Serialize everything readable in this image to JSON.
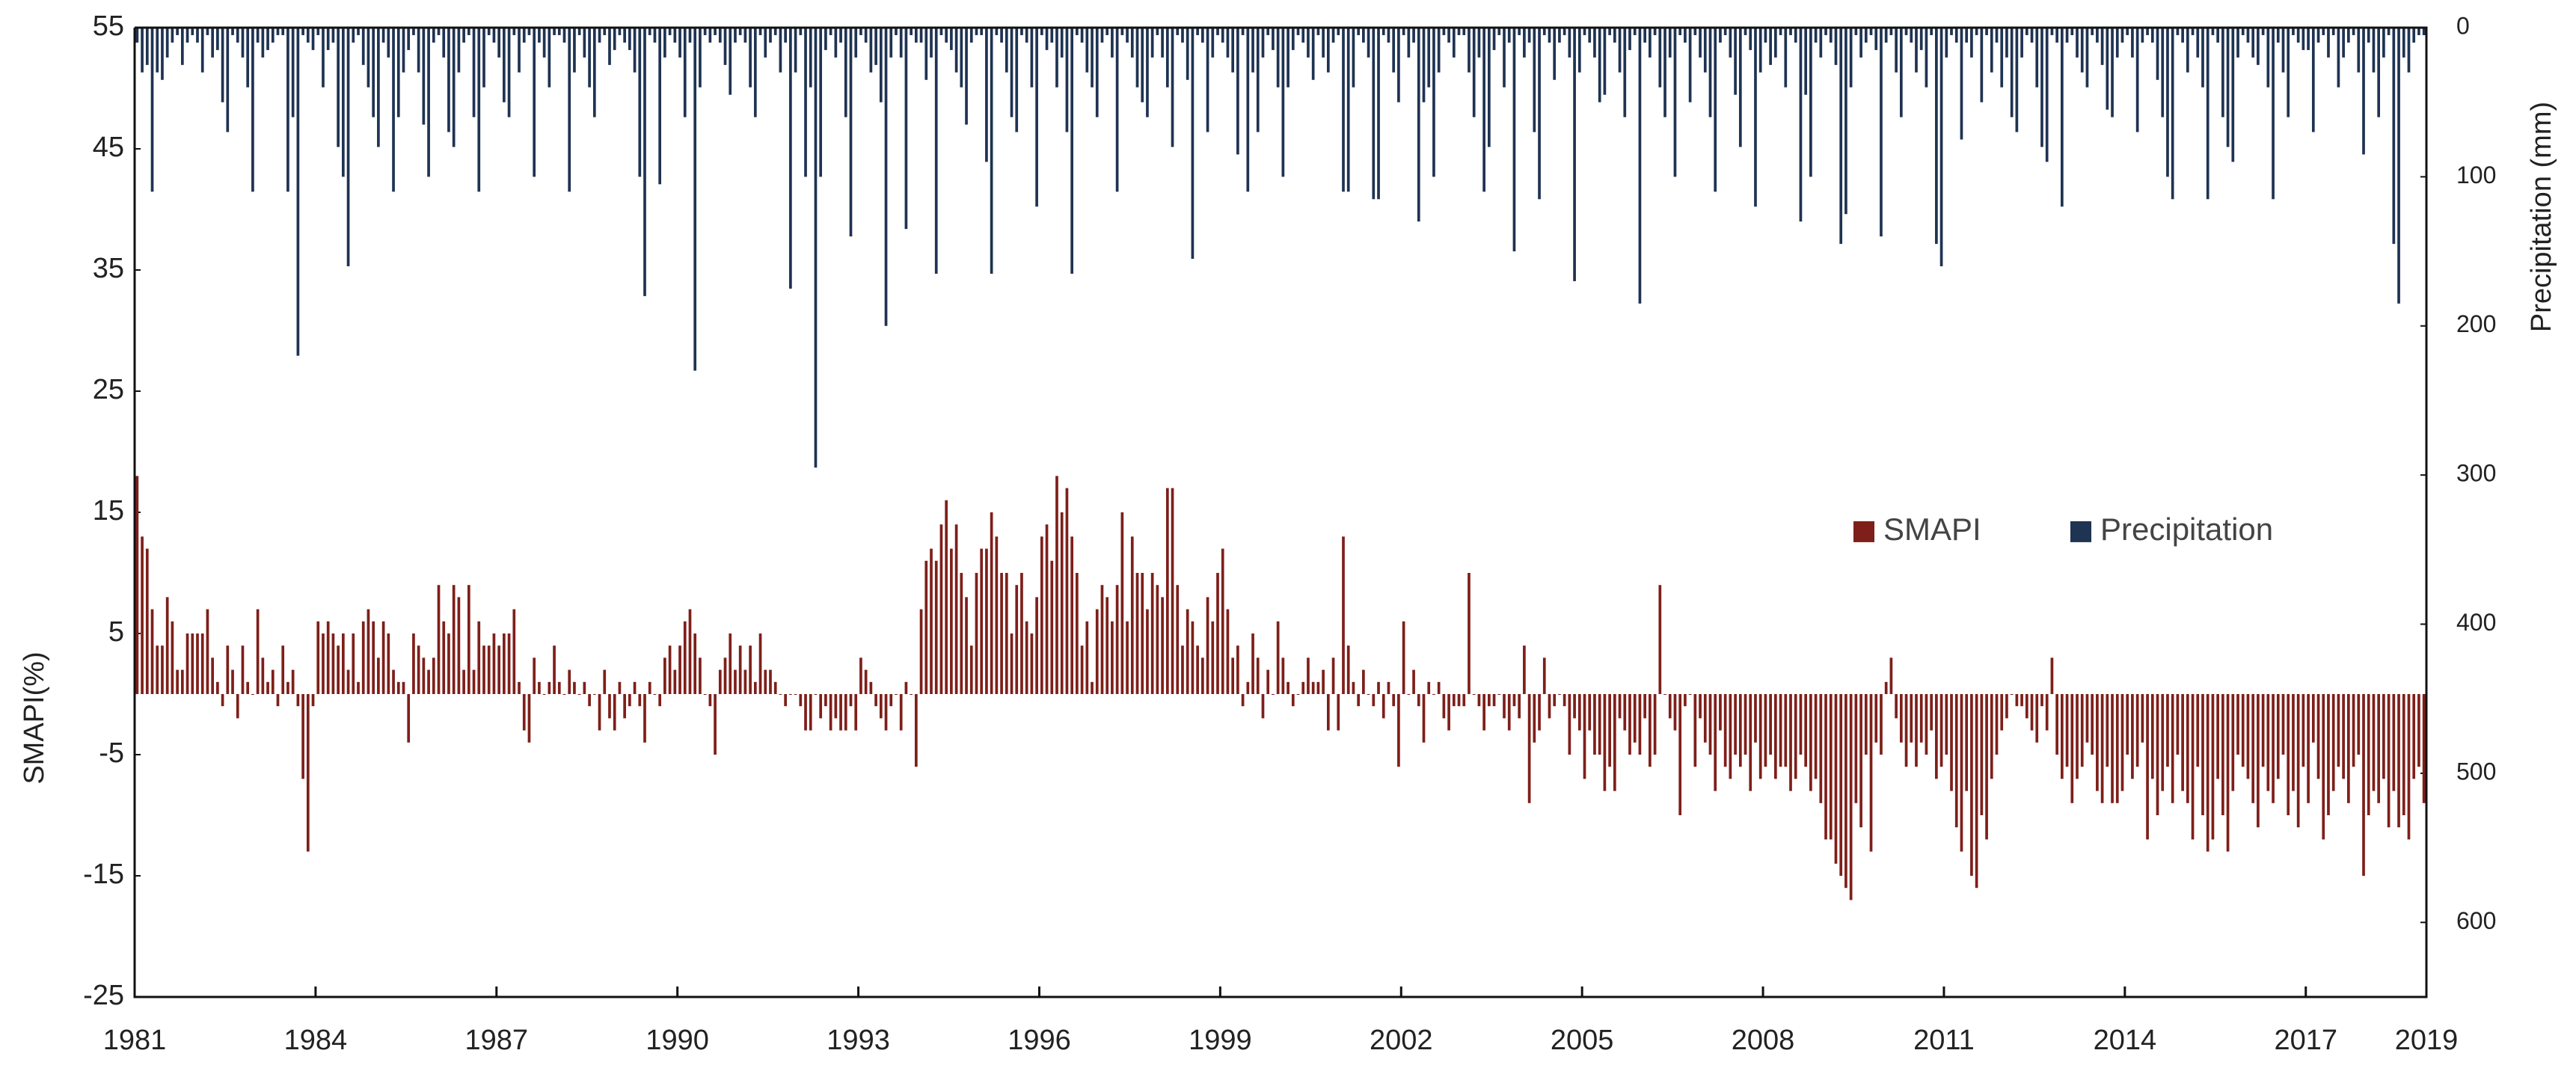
{
  "chart_data": {
    "type": "bar",
    "y_label": "SMAPI(%)",
    "y2_label": "Precipitation (mm)",
    "xlim": [
      1981,
      2019
    ],
    "xticks": [
      1981,
      1984,
      1987,
      1990,
      1993,
      1996,
      1999,
      2002,
      2005,
      2008,
      2011,
      2014,
      2017,
      2019
    ],
    "ylim": [
      -25,
      55
    ],
    "yticks": [
      -25,
      -15,
      -5,
      5,
      15,
      25,
      35,
      45,
      55
    ],
    "y2lim": [
      0,
      650
    ],
    "y2ticks": [
      0,
      100,
      200,
      300,
      400,
      500,
      600
    ],
    "y2_reversed": true,
    "legend": "center-right",
    "series": [
      {
        "name": "SMAPI",
        "color": "#7e1f1a",
        "axis": "y",
        "values": [
          18,
          13,
          12,
          7,
          4,
          4,
          8,
          6,
          2,
          2,
          5,
          5,
          5,
          5,
          7,
          3,
          1,
          -1,
          4,
          2,
          -2,
          4,
          1,
          0,
          7,
          3,
          1,
          2,
          -1,
          4,
          1,
          2,
          -1,
          -7,
          -13,
          -1,
          6,
          5,
          6,
          5,
          4,
          5,
          2,
          5,
          1,
          6,
          7,
          6,
          3,
          6,
          5,
          2,
          1,
          1,
          -4,
          5,
          4,
          3,
          2,
          3,
          9,
          6,
          5,
          9,
          8,
          2,
          9,
          2,
          6,
          4,
          4,
          5,
          4,
          5,
          5,
          7,
          1,
          -3,
          -4,
          3,
          1,
          0,
          1,
          4,
          1,
          0,
          2,
          1,
          0,
          1,
          -1,
          0,
          -3,
          2,
          -2,
          -3,
          1,
          -2,
          -1,
          1,
          -1,
          -4,
          1,
          0,
          -1,
          3,
          4,
          2,
          4,
          6,
          7,
          5,
          3,
          0,
          -1,
          -5,
          2,
          3,
          5,
          2,
          4,
          2,
          4,
          1,
          5,
          2,
          2,
          1,
          0,
          -1,
          0,
          0,
          -1,
          -3,
          -3,
          0,
          -2,
          -1,
          -3,
          -2,
          -3,
          -3,
          -1,
          -3,
          3,
          2,
          1,
          -1,
          -2,
          -3,
          -1,
          0,
          -3,
          1,
          0,
          -6,
          7,
          11,
          12,
          11,
          14,
          16,
          12,
          14,
          10,
          8,
          4,
          10,
          12,
          12,
          15,
          13,
          10,
          10,
          5,
          9,
          10,
          6,
          5,
          8,
          13,
          14,
          11,
          18,
          15,
          17,
          13,
          10,
          4,
          6,
          1,
          7,
          9,
          8,
          6,
          9,
          15,
          6,
          13,
          10,
          10,
          7,
          10,
          9,
          8,
          17,
          17,
          9,
          4,
          7,
          6,
          4,
          3,
          8,
          6,
          10,
          12,
          7,
          3,
          4,
          -1,
          1,
          5,
          3,
          -2,
          2,
          0,
          6,
          3,
          1,
          -1,
          0,
          1,
          3,
          1,
          1,
          2,
          -3,
          3,
          -3,
          13,
          4,
          1,
          -1,
          2,
          0,
          -1,
          1,
          -2,
          1,
          -1,
          -6,
          6,
          0,
          2,
          -1,
          -4,
          1,
          0,
          1,
          -2,
          -3,
          -1,
          -1,
          -1,
          10,
          0,
          -1,
          -3,
          -1,
          -1,
          0,
          -2,
          -3,
          -1,
          -2,
          4,
          -9,
          -4,
          -3,
          3,
          -2,
          -1,
          0,
          -1,
          -5,
          -2,
          -3,
          -7,
          -3,
          -5,
          -5,
          -8,
          -6,
          -8,
          -2,
          -3,
          -5,
          -4,
          -5,
          -2,
          -6,
          -5,
          9,
          0,
          -2,
          -3,
          -10,
          -1,
          0,
          -6,
          -2,
          -4,
          -5,
          -8,
          -3,
          -6,
          -7,
          -5,
          -6,
          -5,
          -8,
          -4,
          -7,
          -6,
          -5,
          -7,
          -6,
          -6,
          -8,
          -7,
          -5,
          -6,
          -8,
          -7,
          -9,
          -12,
          -12,
          -14,
          -15,
          -16,
          -17,
          -9,
          -11,
          -5,
          -13,
          -4,
          -5,
          1,
          3,
          -2,
          -4,
          -6,
          -4,
          -6,
          -4,
          -5,
          -3,
          -7,
          -6,
          -5,
          -8,
          -11,
          -13,
          -8,
          -15,
          -16,
          -10,
          -12,
          -7,
          -5,
          -3,
          -2,
          0,
          -1,
          -1,
          -2,
          -3,
          -4,
          -1,
          -3,
          3,
          -5,
          -7,
          -6,
          -9,
          -7,
          -6,
          -4,
          -5,
          -8,
          -9,
          -6,
          -9,
          -9,
          -8,
          -5,
          -7,
          -6,
          -4,
          -12,
          -7,
          -10,
          -8,
          -6,
          -9,
          -5,
          -8,
          -9,
          -12,
          -6,
          -10,
          -13,
          -12,
          -7,
          -10,
          -13,
          -8,
          -5,
          -6,
          -7,
          -9,
          -11,
          -6,
          -8,
          -9,
          -7,
          -5,
          -10,
          -8,
          -11,
          -6,
          -9,
          -4,
          -7,
          -12,
          -10,
          -8,
          -6,
          -7,
          -9,
          -6,
          -5,
          -15,
          -10,
          -8,
          -9,
          -7,
          -11,
          -8,
          -11,
          -10,
          -12,
          -7,
          -6,
          -9
        ]
      },
      {
        "name": "Precipitation",
        "color": "#1f3352",
        "axis": "y2",
        "values": [
          10,
          30,
          25,
          110,
          30,
          35,
          20,
          10,
          5,
          25,
          10,
          5,
          10,
          30,
          5,
          20,
          15,
          50,
          70,
          5,
          10,
          20,
          40,
          110,
          10,
          20,
          15,
          10,
          5,
          5,
          110,
          60,
          220,
          5,
          10,
          15,
          5,
          40,
          15,
          10,
          80,
          100,
          160,
          10,
          5,
          25,
          40,
          60,
          80,
          10,
          20,
          110,
          60,
          30,
          15,
          5,
          30,
          65,
          100,
          10,
          5,
          20,
          70,
          80,
          30,
          10,
          5,
          60,
          110,
          40,
          5,
          10,
          20,
          50,
          60,
          5,
          30,
          10,
          5,
          100,
          10,
          20,
          40,
          5,
          5,
          10,
          110,
          30,
          5,
          20,
          40,
          60,
          10,
          5,
          25,
          15,
          5,
          10,
          15,
          30,
          100,
          180,
          5,
          10,
          105,
          20,
          5,
          10,
          20,
          60,
          10,
          230,
          40,
          5,
          10,
          5,
          10,
          25,
          45,
          10,
          5,
          10,
          40,
          60,
          5,
          20,
          10,
          5,
          30,
          10,
          175,
          30,
          5,
          100,
          40,
          295,
          100,
          15,
          5,
          20,
          10,
          60,
          140,
          20,
          5,
          10,
          30,
          25,
          50,
          200,
          20,
          5,
          20,
          135,
          5,
          10,
          10,
          35,
          20,
          165,
          5,
          10,
          15,
          30,
          40,
          65,
          10,
          5,
          5,
          90,
          165,
          5,
          10,
          30,
          60,
          70,
          5,
          10,
          40,
          120,
          5,
          15,
          10,
          40,
          20,
          70,
          165,
          5,
          10,
          30,
          40,
          60,
          10,
          5,
          20,
          110,
          5,
          10,
          20,
          40,
          50,
          60,
          20,
          5,
          20,
          40,
          80,
          5,
          10,
          35,
          155,
          5,
          10,
          70,
          20,
          5,
          10,
          20,
          30,
          85,
          5,
          110,
          30,
          70,
          20,
          5,
          15,
          40,
          100,
          40,
          15,
          5,
          10,
          20,
          35,
          5,
          20,
          30,
          10,
          5,
          110,
          110,
          40,
          5,
          10,
          20,
          115,
          115,
          5,
          10,
          30,
          50,
          5,
          20,
          10,
          130,
          50,
          40,
          100,
          30,
          5,
          10,
          20,
          5,
          5,
          30,
          60,
          20,
          110,
          80,
          15,
          5,
          40,
          10,
          150,
          5,
          20,
          10,
          70,
          115,
          5,
          10,
          35,
          10,
          5,
          20,
          170,
          30,
          5,
          10,
          20,
          50,
          45,
          5,
          10,
          30,
          60,
          15,
          5,
          185,
          10,
          20,
          5,
          40,
          60,
          20,
          100,
          5,
          10,
          50,
          5,
          20,
          30,
          60,
          110,
          10,
          5,
          20,
          45,
          80,
          5,
          15,
          120,
          30,
          10,
          25,
          20,
          5,
          40,
          5,
          10,
          130,
          45,
          100,
          10,
          20,
          5,
          10,
          25,
          145,
          125,
          40,
          5,
          20,
          10,
          5,
          15,
          140,
          10,
          5,
          30,
          60,
          5,
          10,
          30,
          15,
          40,
          5,
          145,
          160,
          20,
          5,
          10,
          75,
          10,
          20,
          5,
          50,
          5,
          30,
          10,
          40,
          20,
          60,
          70,
          20,
          5,
          10,
          40,
          80,
          90,
          5,
          10,
          120,
          10,
          5,
          20,
          30,
          40,
          5,
          10,
          25,
          55,
          60,
          20,
          10,
          5,
          20,
          70,
          10,
          5,
          10,
          35,
          60,
          100,
          115,
          5,
          10,
          30,
          5,
          20,
          40,
          115,
          5,
          10,
          60,
          80,
          90,
          20,
          5,
          10,
          20,
          25,
          5,
          40,
          115,
          10,
          30,
          60,
          5,
          10,
          15,
          15,
          70,
          10,
          5,
          20,
          5,
          40,
          20,
          10,
          5,
          30,
          85,
          10,
          30,
          60,
          20,
          5,
          145,
          185,
          20,
          30,
          10,
          5,
          5
        ]
      }
    ]
  }
}
